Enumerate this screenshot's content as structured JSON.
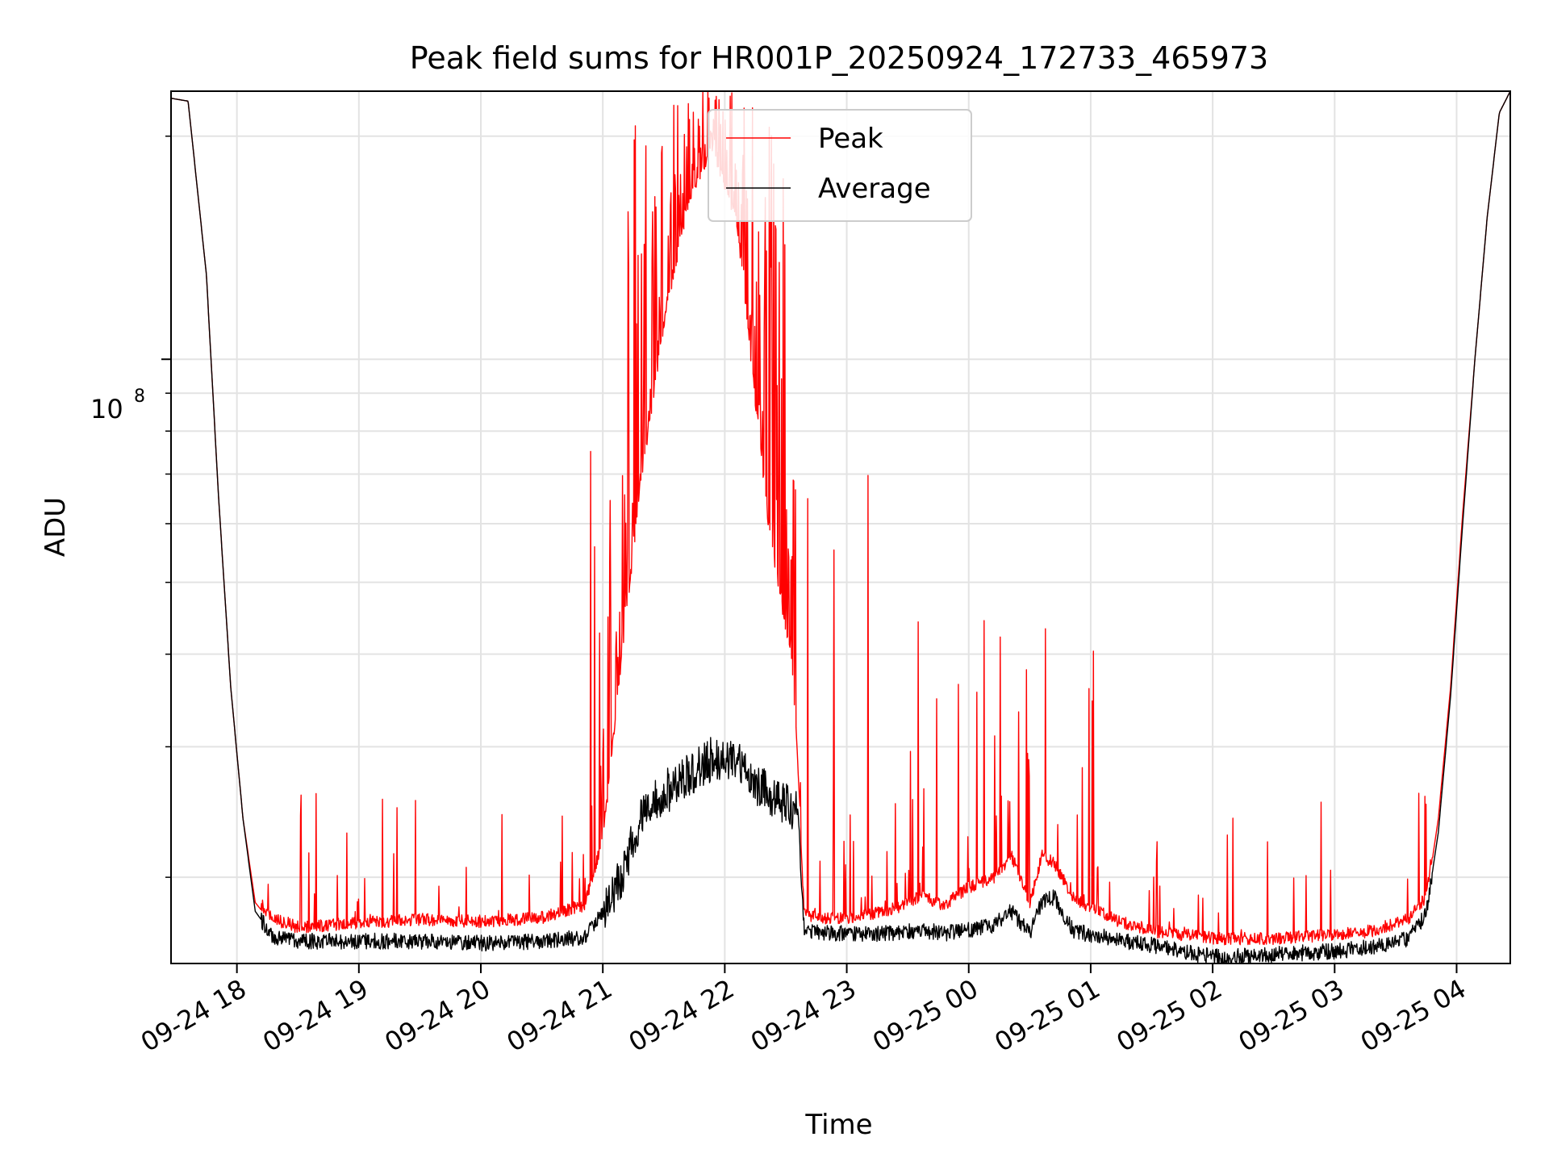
{
  "chart_data": {
    "type": "line",
    "title": "Peak field sums for HR001P_20250924_172733_465973",
    "xlabel": "Time",
    "ylabel": "ADU",
    "yscale": "log",
    "grid": true,
    "legend_position": "top-center",
    "xlim": [
      17.46,
      28.44
    ],
    "ylim": [
      15300000.0,
      230000000.0
    ],
    "x_ticks": [
      {
        "value": 18,
        "label": "09-24 18"
      },
      {
        "value": 19,
        "label": "09-24 19"
      },
      {
        "value": 20,
        "label": "09-24 20"
      },
      {
        "value": 21,
        "label": "09-24 21"
      },
      {
        "value": 22,
        "label": "09-24 22"
      },
      {
        "value": 23,
        "label": "09-24 23"
      },
      {
        "value": 24,
        "label": "09-25 00"
      },
      {
        "value": 25,
        "label": "09-25 01"
      },
      {
        "value": 26,
        "label": "09-25 02"
      },
      {
        "value": 27,
        "label": "09-25 03"
      },
      {
        "value": 28,
        "label": "09-25 04"
      }
    ],
    "y_major_tick": {
      "value": 100000000,
      "base": "10",
      "exponent": "8"
    },
    "y_minor_ticks": [
      20000000,
      30000000,
      40000000,
      50000000,
      60000000,
      70000000,
      80000000,
      90000000,
      200000000
    ],
    "series": [
      {
        "name": "Peak",
        "color": "#ff0000",
        "x": [
          17.46,
          17.6,
          17.75,
          17.85,
          17.95,
          18.05,
          18.15,
          18.3,
          18.5,
          19.0,
          19.5,
          20.0,
          20.5,
          20.85,
          21.0,
          21.15,
          21.3,
          21.5,
          21.7,
          21.9,
          22.1,
          22.35,
          22.55,
          22.6,
          22.65,
          22.8,
          23.0,
          23.2,
          23.4,
          23.6,
          23.8,
          24.0,
          24.2,
          24.35,
          24.5,
          24.6,
          24.7,
          24.85,
          24.95,
          25.05,
          25.2,
          25.5,
          25.9,
          26.1,
          26.4,
          26.7,
          27.0,
          27.3,
          27.6,
          27.75,
          27.85,
          27.95,
          28.05,
          28.15,
          28.25,
          28.35,
          28.44
        ],
        "y": [
          225000000.0,
          223000000.0,
          130000000.0,
          65000000.0,
          36000000.0,
          24000000.0,
          18500000.0,
          17200000.0,
          16800000.0,
          17000000.0,
          17200000.0,
          17100000.0,
          17300000.0,
          18000000.0,
          22000000.0,
          38000000.0,
          65000000.0,
          110000000.0,
          160000000.0,
          190000000.0,
          150000000.0,
          60000000.0,
          38000000.0,
          28000000.0,
          17500000.0,
          17200000.0,
          17300000.0,
          17500000.0,
          17800000.0,
          18500000.0,
          18000000.0,
          19000000.0,
          19500000.0,
          21000000.0,
          18000000.0,
          21000000.0,
          20500000.0,
          18500000.0,
          18000000.0,
          17800000.0,
          17200000.0,
          16600000.0,
          16300000.0,
          16200000.0,
          16200000.0,
          16300000.0,
          16400000.0,
          16600000.0,
          17200000.0,
          18500000.0,
          24000000.0,
          36000000.0,
          62000000.0,
          100000000.0,
          155000000.0,
          215000000.0,
          230000000.0
        ]
      },
      {
        "name": "Average",
        "color": "#000000",
        "x": [
          17.46,
          17.6,
          17.75,
          17.85,
          17.95,
          18.05,
          18.15,
          18.3,
          18.5,
          19.0,
          19.5,
          20.0,
          20.5,
          20.85,
          21.0,
          21.15,
          21.3,
          21.5,
          21.7,
          21.9,
          22.1,
          22.35,
          22.55,
          22.6,
          22.65,
          22.8,
          23.0,
          23.2,
          23.4,
          23.6,
          23.8,
          24.0,
          24.2,
          24.35,
          24.5,
          24.6,
          24.7,
          24.85,
          24.95,
          25.05,
          25.2,
          25.5,
          25.9,
          26.1,
          26.4,
          26.7,
          27.0,
          27.3,
          27.6,
          27.75,
          27.85,
          27.95,
          28.05,
          28.15,
          28.25,
          28.35,
          28.44
        ],
        "y": [
          225000000.0,
          223000000.0,
          130000000.0,
          65000000.0,
          36000000.0,
          24000000.0,
          18000000.0,
          16600000.0,
          16400000.0,
          16400000.0,
          16400000.0,
          16300000.0,
          16400000.0,
          16600000.0,
          18000000.0,
          20000000.0,
          24000000.0,
          26000000.0,
          27500000.0,
          29000000.0,
          28500000.0,
          26000000.0,
          25000000.0,
          24500000.0,
          17000000.0,
          16800000.0,
          16800000.0,
          16800000.0,
          16800000.0,
          17000000.0,
          16800000.0,
          17000000.0,
          17200000.0,
          18000000.0,
          16800000.0,
          18500000.0,
          18800000.0,
          17000000.0,
          16800000.0,
          16700000.0,
          16500000.0,
          16200000.0,
          15700000.0,
          15600000.0,
          15700000.0,
          15800000.0,
          15900000.0,
          16100000.0,
          16500000.0,
          17800000.0,
          23000000.0,
          35000000.0,
          60000000.0,
          100000000.0,
          155000000.0,
          215000000.0,
          230000000.0
        ]
      }
    ]
  }
}
